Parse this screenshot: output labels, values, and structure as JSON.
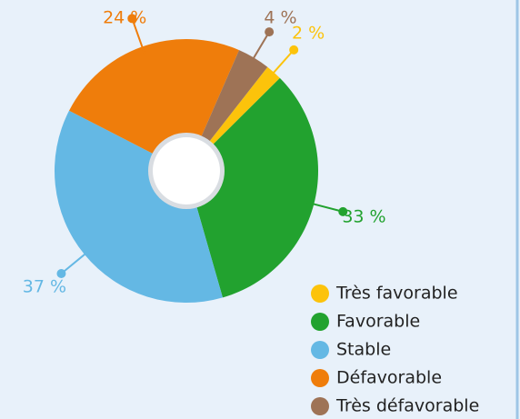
{
  "chart_data": {
    "type": "donut",
    "categories": [
      "Très favorable",
      "Favorable",
      "Stable",
      "Défavorable",
      "Très défavorable"
    ],
    "values": [
      2,
      33,
      37,
      24,
      4
    ],
    "value_labels": [
      "2 %",
      "33 %",
      "37 %",
      "24 %",
      "4 %"
    ],
    "colors": [
      "#fcc30b",
      "#22a22f",
      "#64b8e4",
      "#ef7d0b",
      "#9e7356"
    ],
    "legend": "bottom-right"
  }
}
